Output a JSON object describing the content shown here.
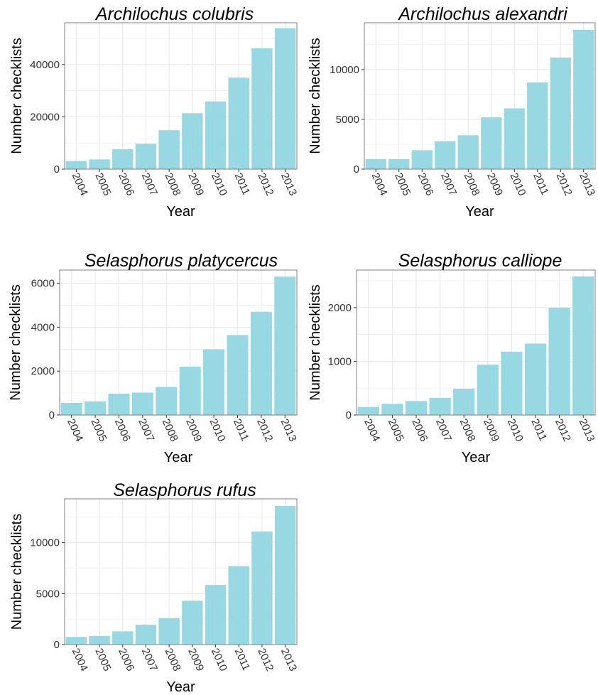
{
  "colors": {
    "bar": "#98d8e3",
    "panel_background": "#ffffff",
    "grid": "#ebebeb",
    "panel_border": "#7f7f7f"
  },
  "chart_data": [
    {
      "type": "bar",
      "title": "Archilochus colubris",
      "xlabel": "Year",
      "ylabel": "Number checklists",
      "categories": [
        "2004",
        "2005",
        "2006",
        "2007",
        "2008",
        "2009",
        "2010",
        "2011",
        "2012",
        "2013"
      ],
      "values": [
        3100,
        3700,
        7600,
        9700,
        14900,
        21400,
        25900,
        35000,
        46200,
        53900
      ],
      "ylim": [
        0,
        56000
      ],
      "yticks": [
        0,
        20000,
        40000
      ],
      "grid": true
    },
    {
      "type": "bar",
      "title": "Archilochus alexandri",
      "xlabel": "Year",
      "ylabel": "Number checklists",
      "categories": [
        "2004",
        "2005",
        "2006",
        "2007",
        "2008",
        "2009",
        "2010",
        "2011",
        "2012",
        "2013"
      ],
      "values": [
        1000,
        1000,
        1900,
        2800,
        3400,
        5200,
        6100,
        8700,
        11200,
        14000
      ],
      "ylim": [
        0,
        14700
      ],
      "yticks": [
        0,
        5000,
        10000
      ],
      "grid": true
    },
    {
      "type": "bar",
      "title": "Selasphorus platycercus",
      "xlabel": "Year",
      "ylabel": "Number checklists",
      "categories": [
        "2004",
        "2005",
        "2006",
        "2007",
        "2008",
        "2009",
        "2010",
        "2011",
        "2012",
        "2013"
      ],
      "values": [
        550,
        620,
        970,
        1020,
        1280,
        2200,
        2990,
        3640,
        4700,
        6300
      ],
      "ylim": [
        0,
        6600
      ],
      "yticks": [
        0,
        2000,
        4000,
        6000
      ],
      "grid": true
    },
    {
      "type": "bar",
      "title": "Selasphorus calliope",
      "xlabel": "Year",
      "ylabel": "Number checklists",
      "categories": [
        "2004",
        "2005",
        "2006",
        "2007",
        "2008",
        "2009",
        "2010",
        "2011",
        "2012",
        "2013"
      ],
      "values": [
        150,
        210,
        260,
        320,
        490,
        940,
        1180,
        1330,
        2000,
        2580
      ],
      "ylim": [
        0,
        2700
      ],
      "yticks": [
        0,
        1000,
        2000
      ],
      "grid": true
    },
    {
      "type": "bar",
      "title": "Selasphorus rufus",
      "xlabel": "Year",
      "ylabel": "Number checklists",
      "categories": [
        "2004",
        "2005",
        "2006",
        "2007",
        "2008",
        "2009",
        "2010",
        "2011",
        "2012",
        "2013"
      ],
      "values": [
        750,
        850,
        1300,
        1950,
        2600,
        4300,
        5850,
        7700,
        11100,
        13600
      ],
      "ylim": [
        0,
        14300
      ],
      "yticks": [
        0,
        5000,
        10000
      ],
      "grid": true
    }
  ]
}
